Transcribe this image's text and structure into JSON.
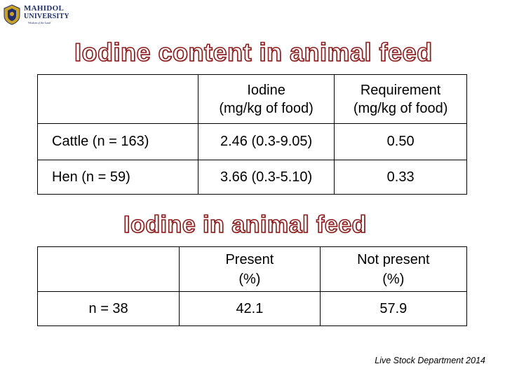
{
  "logo": {
    "line1": "MAHIDOL",
    "line2": "UNIVERSITY",
    "line3": "Wisdom of the Land"
  },
  "heading1": "Iodine content in animal feed",
  "table1": {
    "headers": [
      "",
      "Iodine\n(mg/kg of food)",
      "Requirement\n(mg/kg of food)"
    ],
    "header_lines": [
      [
        "Iodine",
        "(mg/kg of food)"
      ],
      [
        "Requirement",
        "(mg/kg of food)"
      ]
    ],
    "rows": [
      {
        "label": "Cattle (n = 163)",
        "iodine": "2.46 (0.3-9.05)",
        "requirement": "0.50"
      },
      {
        "label": "Hen (n = 59)",
        "iodine": "3.66 (0.3-5.10)",
        "requirement": "0.33"
      }
    ]
  },
  "heading2": "Iodine in animal feed",
  "table2": {
    "header_lines": [
      [
        "Present",
        "(%)"
      ],
      [
        "Not present",
        "(%)"
      ]
    ],
    "rows": [
      {
        "label": "n = 38",
        "present": "42.1",
        "not_present": "57.9"
      }
    ]
  },
  "source": "Live Stock Department 2014",
  "colors": {
    "heading_outline": "#8b1a1a",
    "logo_blue": "#1f2f6e",
    "logo_gold": "#c9a227"
  }
}
